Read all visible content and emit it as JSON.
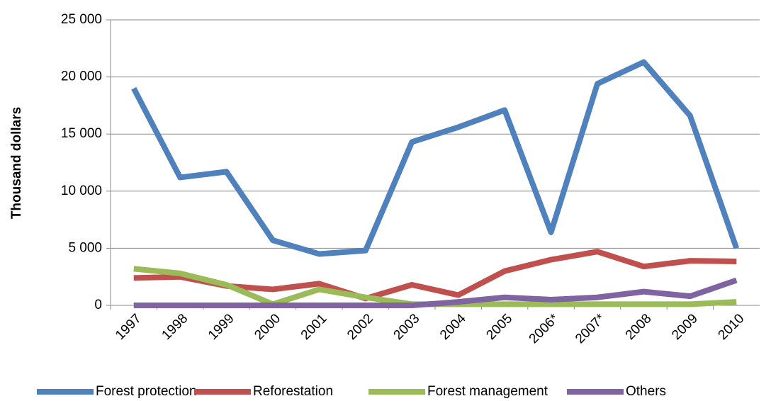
{
  "chart_data": {
    "type": "line",
    "y_label": "Thousand dollars",
    "categories": [
      "1997",
      "1998",
      "1999",
      "2000",
      "2001",
      "2002",
      "2003",
      "2004",
      "2005",
      "2006*",
      "2007*",
      "2008",
      "2009",
      "2010"
    ],
    "series": [
      {
        "name": "Forest protection",
        "color": "#4f81bd",
        "values": [
          19000,
          11200,
          11700,
          5700,
          4500,
          4800,
          14300,
          15600,
          17100,
          6400,
          19400,
          21300,
          16600,
          5000
        ]
      },
      {
        "name": "Reforestation",
        "color": "#c0504d",
        "values": [
          2400,
          2500,
          1700,
          1400,
          1900,
          600,
          1800,
          900,
          3000,
          4000,
          4700,
          3400,
          3900,
          3850
        ]
      },
      {
        "name": "Forest management",
        "color": "#9bbb59",
        "values": [
          3200,
          2800,
          1800,
          100,
          1400,
          700,
          100,
          100,
          100,
          100,
          100,
          100,
          100,
          300
        ]
      },
      {
        "name": "Others",
        "color": "#8064a2",
        "values": [
          0,
          0,
          0,
          0,
          0,
          0,
          0,
          300,
          700,
          500,
          700,
          1200,
          800,
          2200
        ]
      }
    ],
    "ylim": [
      0,
      25000
    ],
    "yticks": [
      0,
      {
        "value": 5000,
        "label": "5 000"
      },
      {
        "value": 10000,
        "label": "10 000"
      },
      {
        "value": 15000,
        "label": "15 000"
      },
      {
        "value": 20000,
        "label": "20 000"
      },
      {
        "value": 25000,
        "label": "25 000"
      }
    ],
    "grid": true,
    "legend": "bottom"
  }
}
